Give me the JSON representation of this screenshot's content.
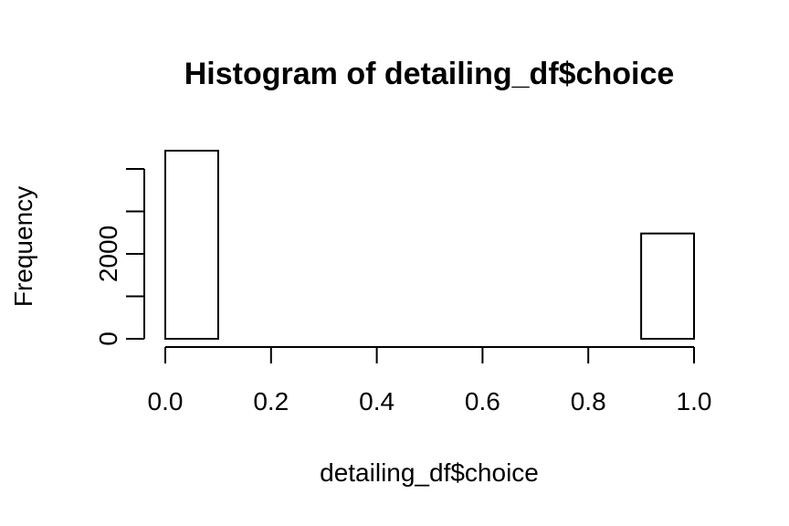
{
  "chart_data": {
    "type": "bar",
    "title": "Histogram of detailing_df$choice",
    "xlabel": "detailing_df$choice",
    "ylabel": "Frequency",
    "bins": [
      {
        "start": 0.0,
        "end": 0.1,
        "count": 4430
      },
      {
        "start": 0.1,
        "end": 0.2,
        "count": 0
      },
      {
        "start": 0.2,
        "end": 0.3,
        "count": 0
      },
      {
        "start": 0.3,
        "end": 0.4,
        "count": 0
      },
      {
        "start": 0.4,
        "end": 0.5,
        "count": 0
      },
      {
        "start": 0.5,
        "end": 0.6,
        "count": 0
      },
      {
        "start": 0.6,
        "end": 0.7,
        "count": 0
      },
      {
        "start": 0.7,
        "end": 0.8,
        "count": 0
      },
      {
        "start": 0.8,
        "end": 0.9,
        "count": 0
      },
      {
        "start": 0.9,
        "end": 1.0,
        "count": 2480
      }
    ],
    "xlim": [
      0,
      1
    ],
    "ylim": [
      0,
      4430
    ],
    "x_ticks": [
      0.0,
      0.2,
      0.4,
      0.6,
      0.8,
      1.0
    ],
    "x_tick_labels": [
      "0.0",
      "0.2",
      "0.4",
      "0.6",
      "0.8",
      "1.0"
    ],
    "y_ticks": [
      0,
      1000,
      2000,
      3000,
      4000
    ],
    "y_tick_labels": [
      "0",
      "",
      "2000",
      "",
      ""
    ],
    "grid": false,
    "colors": {
      "bar_fill": "#ffffff",
      "bar_stroke": "#000000",
      "axis": "#000000",
      "background": "#ffffff"
    }
  }
}
